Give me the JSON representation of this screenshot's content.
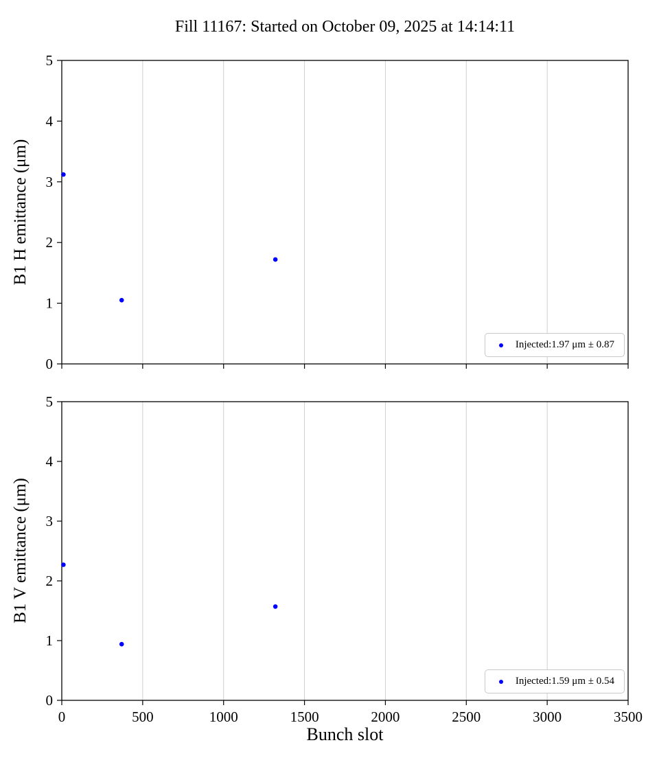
{
  "title": "Fill 11167: Started on October 09, 2025 at 14:14:11",
  "xlabel": "Bunch slot",
  "chart_data": [
    {
      "type": "scatter",
      "ylabel": "B1 H emittance (μm)",
      "x": [
        10,
        370,
        1320
      ],
      "y": [
        3.12,
        1.05,
        1.72
      ],
      "xlim": [
        0,
        3500
      ],
      "ylim": [
        0,
        5
      ],
      "xticks": [
        0,
        500,
        1000,
        1500,
        2000,
        2500,
        3000,
        3500
      ],
      "yticks": [
        0,
        1,
        2,
        3,
        4,
        5
      ],
      "legend": "Injected:1.97 μm ± 0.87",
      "marker_color": "#0000ff",
      "grid": "vertical",
      "legend_position": "lower right"
    },
    {
      "type": "scatter",
      "ylabel": "B1 V emittance (μm)",
      "x": [
        10,
        370,
        1320
      ],
      "y": [
        2.27,
        0.94,
        1.57
      ],
      "xlim": [
        0,
        3500
      ],
      "ylim": [
        0,
        5
      ],
      "xticks": [
        0,
        500,
        1000,
        1500,
        2000,
        2500,
        3000,
        3500
      ],
      "yticks": [
        0,
        1,
        2,
        3,
        4,
        5
      ],
      "legend": "Injected:1.59 μm ± 0.54",
      "marker_color": "#0000ff",
      "grid": "vertical",
      "legend_position": "lower right"
    }
  ]
}
